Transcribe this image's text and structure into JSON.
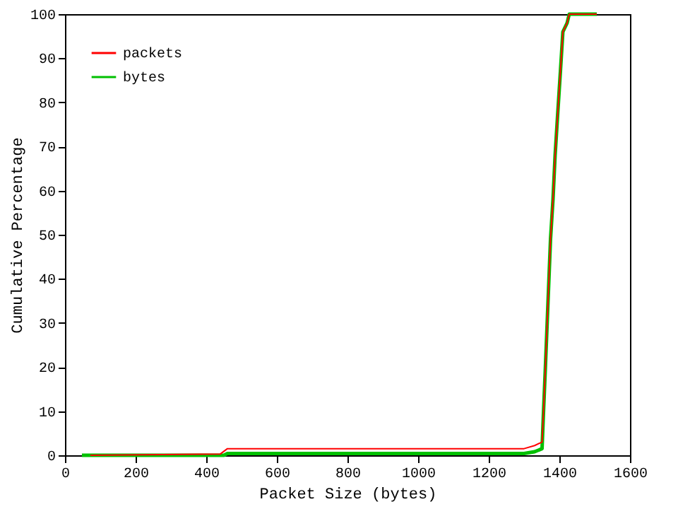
{
  "chart_data": {
    "type": "line",
    "xlabel": "Packet Size (bytes)",
    "ylabel": "Cumulative Percentage",
    "xlim": [
      0,
      1600
    ],
    "xticks": [
      0,
      200,
      400,
      600,
      800,
      1000,
      1200,
      1400,
      1600
    ],
    "ylim": [
      0,
      100
    ],
    "yticks": [
      0,
      10,
      20,
      30,
      40,
      50,
      60,
      70,
      80,
      90,
      100
    ],
    "grid": false,
    "legend": "top left",
    "marker": "none",
    "line_style": "solid",
    "series": [
      {
        "name": "packets",
        "color": "#ff0000",
        "x": [
          72,
          440,
          460,
          1300,
          1330,
          1351,
          1355,
          1360,
          1365,
          1370,
          1375,
          1382,
          1388,
          1395,
          1403,
          1410,
          1422,
          1428,
          1506
        ],
        "values": [
          0,
          0.3,
          1.5,
          1.5,
          2.2,
          3,
          9.6,
          19,
          29,
          39,
          49,
          58,
          68,
          77,
          87,
          96,
          98,
          100,
          100
        ]
      },
      {
        "name": "bytes",
        "color": "#00c000",
        "x": [
          48,
          450,
          460,
          1300,
          1330,
          1351,
          1355,
          1360,
          1365,
          1370,
          1375,
          1382,
          1388,
          1395,
          1403,
          1410,
          1422,
          1428,
          1506
        ],
        "values": [
          0,
          0,
          0.4,
          0.4,
          0.8,
          1.5,
          9.6,
          19,
          29,
          39,
          49,
          58,
          68,
          77,
          87,
          96,
          98,
          100,
          100
        ]
      }
    ]
  }
}
